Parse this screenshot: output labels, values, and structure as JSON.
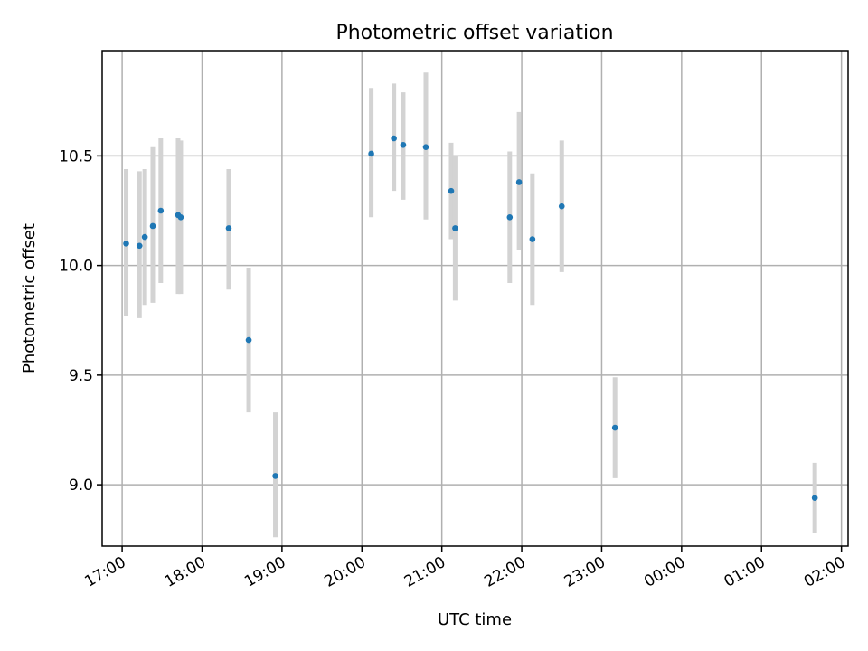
{
  "chart_data": {
    "type": "scatter",
    "title": "Photometric offset variation",
    "xlabel": "UTC time",
    "ylabel": "Photometric offset",
    "x_type": "time",
    "xlim": [
      "2024-01-01T16:45",
      "2024-01-02T02:05"
    ],
    "ylim": [
      8.72,
      10.98
    ],
    "x_ticks": [
      {
        "t": "2024-01-01T17:00",
        "label": "17:00"
      },
      {
        "t": "2024-01-01T18:00",
        "label": "18:00"
      },
      {
        "t": "2024-01-01T19:00",
        "label": "19:00"
      },
      {
        "t": "2024-01-01T20:00",
        "label": "20:00"
      },
      {
        "t": "2024-01-01T21:00",
        "label": "21:00"
      },
      {
        "t": "2024-01-01T22:00",
        "label": "22:00"
      },
      {
        "t": "2024-01-01T23:00",
        "label": "23:00"
      },
      {
        "t": "2024-01-02T00:00",
        "label": "00:00"
      },
      {
        "t": "2024-01-02T01:00",
        "label": "01:00"
      },
      {
        "t": "2024-01-02T02:00",
        "label": "02:00"
      }
    ],
    "y_ticks": [
      {
        "v": 9.0,
        "label": "9.0"
      },
      {
        "v": 9.5,
        "label": "9.5"
      },
      {
        "v": 10.0,
        "label": "10.0"
      },
      {
        "v": 10.5,
        "label": "10.5"
      }
    ],
    "grid": true,
    "points": [
      {
        "t": "2024-01-01T17:03",
        "y": 10.1,
        "low": 9.77,
        "high": 10.44
      },
      {
        "t": "2024-01-01T17:13",
        "y": 10.09,
        "low": 9.76,
        "high": 10.43
      },
      {
        "t": "2024-01-01T17:17",
        "y": 10.13,
        "low": 9.82,
        "high": 10.44
      },
      {
        "t": "2024-01-01T17:23",
        "y": 10.18,
        "low": 9.83,
        "high": 10.54
      },
      {
        "t": "2024-01-01T17:29",
        "y": 10.25,
        "low": 9.92,
        "high": 10.58
      },
      {
        "t": "2024-01-01T17:42",
        "y": 10.23,
        "low": 9.87,
        "high": 10.58
      },
      {
        "t": "2024-01-01T17:44",
        "y": 10.22,
        "low": 9.87,
        "high": 10.57
      },
      {
        "t": "2024-01-01T18:20",
        "y": 10.17,
        "low": 9.89,
        "high": 10.44
      },
      {
        "t": "2024-01-01T18:35",
        "y": 9.66,
        "low": 9.33,
        "high": 9.99
      },
      {
        "t": "2024-01-01T18:55",
        "y": 9.04,
        "low": 8.76,
        "high": 9.33
      },
      {
        "t": "2024-01-01T20:07",
        "y": 10.51,
        "low": 10.22,
        "high": 10.81
      },
      {
        "t": "2024-01-01T20:24",
        "y": 10.58,
        "low": 10.34,
        "high": 10.83
      },
      {
        "t": "2024-01-01T20:31",
        "y": 10.55,
        "low": 10.3,
        "high": 10.79
      },
      {
        "t": "2024-01-01T20:48",
        "y": 10.54,
        "low": 10.21,
        "high": 10.88
      },
      {
        "t": "2024-01-01T21:07",
        "y": 10.34,
        "low": 10.12,
        "high": 10.56
      },
      {
        "t": "2024-01-01T21:10",
        "y": 10.17,
        "low": 9.84,
        "high": 10.5
      },
      {
        "t": "2024-01-01T21:51",
        "y": 10.22,
        "low": 9.92,
        "high": 10.52
      },
      {
        "t": "2024-01-01T21:58",
        "y": 10.38,
        "low": 10.07,
        "high": 10.7
      },
      {
        "t": "2024-01-01T22:08",
        "y": 10.12,
        "low": 9.82,
        "high": 10.42
      },
      {
        "t": "2024-01-01T22:30",
        "y": 10.27,
        "low": 9.97,
        "high": 10.57
      },
      {
        "t": "2024-01-01T23:10",
        "y": 9.26,
        "low": 9.03,
        "high": 9.49
      },
      {
        "t": "2024-01-02T01:40",
        "y": 8.94,
        "low": 8.78,
        "high": 9.1
      }
    ],
    "colors": {
      "marker": "#1f77b4",
      "errorbar": "#d3d3d3",
      "grid": "#b0b0b0",
      "frame": "#000000"
    }
  }
}
